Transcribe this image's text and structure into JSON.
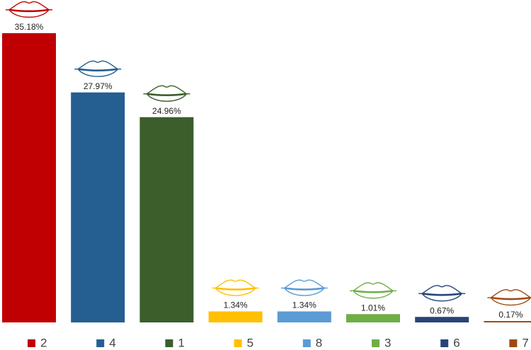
{
  "chart_data": {
    "type": "bar",
    "categories": [
      "2",
      "4",
      "1",
      "5",
      "8",
      "3",
      "6",
      "7"
    ],
    "values": [
      35.18,
      27.97,
      24.96,
      1.34,
      1.34,
      1.01,
      0.67,
      0.17
    ],
    "value_labels": [
      "35.18%",
      "27.97%",
      "24.96%",
      "1.34%",
      "1.34%",
      "1.01%",
      "0.67%",
      "0.17%"
    ],
    "colors": [
      "#c00000",
      "#255e91",
      "#3b5e2b",
      "#ffc000",
      "#5b9bd5",
      "#70ad47",
      "#264478",
      "#9e480e"
    ],
    "legend": "bottom"
  }
}
